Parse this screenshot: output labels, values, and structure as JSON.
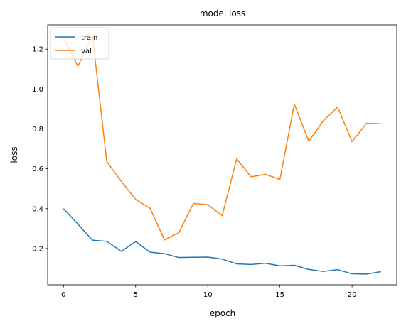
{
  "chart_data": {
    "type": "line",
    "title": "model loss",
    "xlabel": "epoch",
    "ylabel": "loss",
    "xlim": [
      -1.1,
      23.1
    ],
    "ylim": [
      0.018,
      1.322
    ],
    "xticks": [
      0,
      5,
      10,
      15,
      20
    ],
    "yticks": [
      0.2,
      0.4,
      0.6,
      0.8,
      1.0,
      1.2
    ],
    "ytick_labels": [
      "0.2",
      "0.4",
      "0.6",
      "0.8",
      "1.0",
      "1.2"
    ],
    "grid": false,
    "legend_position": "upper left",
    "x": [
      0,
      1,
      2,
      3,
      4,
      5,
      6,
      7,
      8,
      9,
      10,
      11,
      12,
      13,
      14,
      15,
      16,
      17,
      18,
      19,
      20,
      21,
      22
    ],
    "series": [
      {
        "name": "train",
        "color": "#1f77b4",
        "values": [
          0.4,
          0.322,
          0.242,
          0.236,
          0.186,
          0.235,
          0.182,
          0.174,
          0.155,
          0.156,
          0.157,
          0.147,
          0.123,
          0.12,
          0.126,
          0.113,
          0.116,
          0.095,
          0.085,
          0.094,
          0.073,
          0.072,
          0.084
        ]
      },
      {
        "name": "val",
        "color": "#ff7f0e",
        "values": [
          1.255,
          1.115,
          1.27,
          0.635,
          0.538,
          0.447,
          0.402,
          0.243,
          0.28,
          0.426,
          0.42,
          0.365,
          0.65,
          0.56,
          0.572,
          0.547,
          0.925,
          0.738,
          0.84,
          0.91,
          0.736,
          0.828,
          0.826
        ]
      }
    ]
  }
}
